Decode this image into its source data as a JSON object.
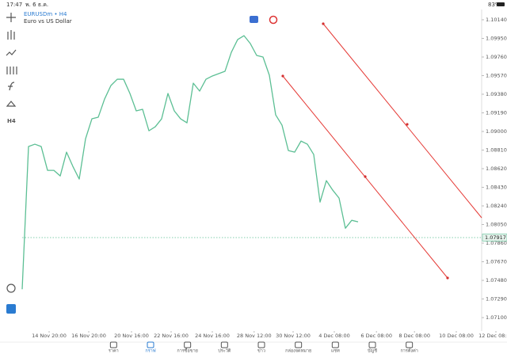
{
  "status_bar": {
    "time": "17:47",
    "date": "พ. 6 ธ.ค.",
    "battery": "83%"
  },
  "symbol": {
    "name": "EURUSDm • H4",
    "description": "Euro vs US Dollar"
  },
  "toolbar": {
    "timeframe": "H4"
  },
  "chart_data": {
    "type": "line",
    "color": "#5cbf94",
    "grid": false,
    "values": [
      1.07389,
      1.08846,
      1.0887,
      1.08846,
      1.08603,
      1.08603,
      1.08546,
      1.08789,
      1.08643,
      1.08514,
      1.08926,
      1.09129,
      1.09145,
      1.09331,
      1.09469,
      1.09533,
      1.09533,
      1.09388,
      1.0921,
      1.09226,
      1.09007,
      1.09048,
      1.09129,
      1.09388,
      1.0921,
      1.09129,
      1.09088,
      1.09493,
      1.09412,
      1.09533,
      1.09566,
      1.0959,
      1.09614,
      1.09808,
      1.09938,
      1.09978,
      1.09897,
      1.09776,
      1.0976,
      1.09574,
      1.09169,
      1.09064,
      1.08805,
      1.08789,
      1.08902,
      1.0887,
      1.08765,
      1.08279,
      1.08498,
      1.08401,
      1.0832,
      1.08012,
      1.08093,
      1.08077
    ],
    "current_price": 1.07917,
    "xlim": [
      0,
      72.5
    ],
    "xticks": [
      {
        "value": 4.25,
        "label": "14 Nov 20:00"
      },
      {
        "value": 10.5,
        "label": "16 Nov 20:00"
      },
      {
        "value": 17.25,
        "label": "20 Nov 16:00"
      },
      {
        "value": 23.5,
        "label": "22 Nov 16:00"
      },
      {
        "value": 30,
        "label": "24 Nov 16:00"
      },
      {
        "value": 36.6,
        "label": "28 Nov 12:00"
      },
      {
        "value": 42.75,
        "label": "30 Nov 12:00"
      },
      {
        "value": 49.25,
        "label": "4 Dec 08:00"
      },
      {
        "value": 55.9,
        "label": "6 Dec 08:00"
      },
      {
        "value": 61.9,
        "label": "8 Dec 08:00"
      },
      {
        "value": 68.5,
        "label": "10 Dec 08:00"
      },
      {
        "value": 74.75,
        "label": "12 Dec 08:00"
      }
    ],
    "ylim": [
      1.07,
      1.1024
    ],
    "yticks": [
      {
        "value": 1.1014,
        "label": "1.10140"
      },
      {
        "value": 1.0995,
        "label": "1.09950"
      },
      {
        "value": 1.0976,
        "label": "1.09760"
      },
      {
        "value": 1.0957,
        "label": "1.09570"
      },
      {
        "value": 1.0938,
        "label": "1.09380"
      },
      {
        "value": 1.0919,
        "label": "1.09190"
      },
      {
        "value": 1.09,
        "label": "1.09000"
      },
      {
        "value": 1.0881,
        "label": "1.08810"
      },
      {
        "value": 1.0862,
        "label": "1.08620"
      },
      {
        "value": 1.0843,
        "label": "1.08430"
      },
      {
        "value": 1.0824,
        "label": "1.08240"
      },
      {
        "value": 1.0805,
        "label": "1.08050"
      },
      {
        "value": 1.0786,
        "label": "1.07860"
      },
      {
        "value": 1.0767,
        "label": "1.07670"
      },
      {
        "value": 1.0748,
        "label": "1.07480"
      },
      {
        "value": 1.0729,
        "label": "1.07290"
      },
      {
        "value": 1.071,
        "label": "1.07100"
      }
    ]
  },
  "nav": [
    "ราคา",
    "กราฟ",
    "การซื้อขาย",
    "ประวัติ",
    "ข่าว",
    "กล่องจดหมาย",
    "แชท",
    "บัญชี",
    "การตั้งค่า"
  ]
}
